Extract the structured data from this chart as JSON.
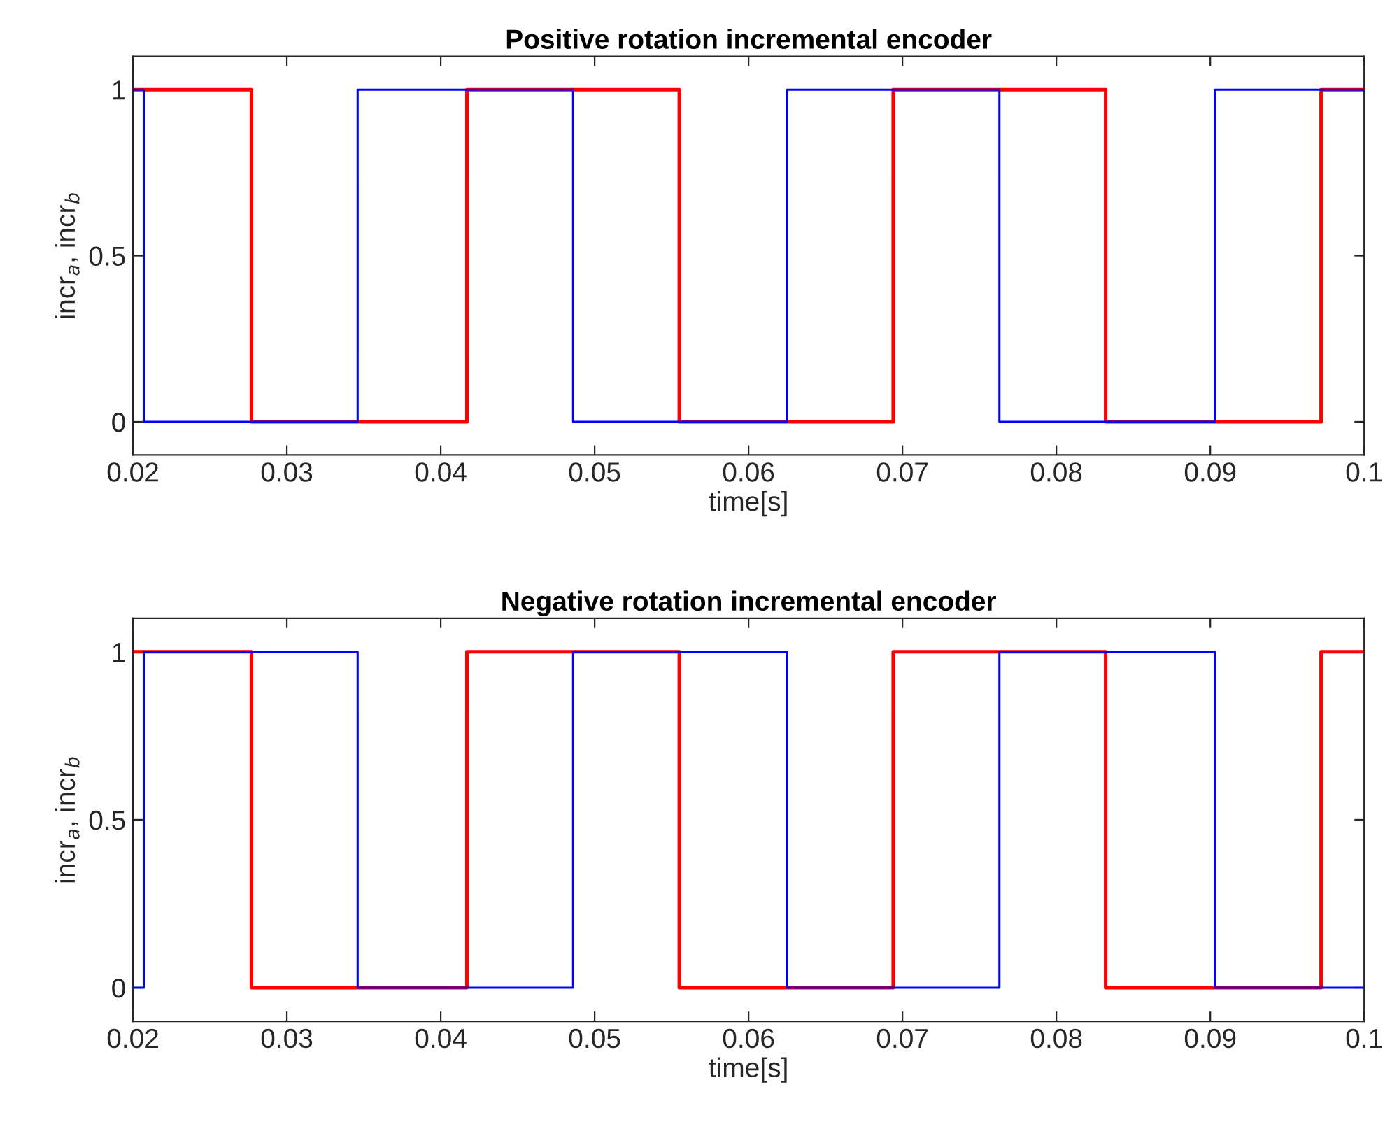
{
  "chart_data": [
    {
      "type": "step",
      "title": "Positive rotation incremental encoder",
      "xlabel": "time[s]",
      "ylabel": "incr$_{a}$, incr$_{b}$",
      "xlim": [
        0.02,
        0.1
      ],
      "ylim": [
        -0.1,
        1.1
      ],
      "xticks": [
        0.02,
        0.03,
        0.04,
        0.05,
        0.06,
        0.07,
        0.08,
        0.09,
        0.1
      ],
      "yticks": [
        0,
        0.5,
        1
      ],
      "grid": false,
      "legend": false,
      "marker": "none",
      "line_style": "solid",
      "series": [
        {
          "color": "#ff0000",
          "x": [
            0.02,
            0.0277,
            0.0417,
            0.0555,
            0.0694,
            0.0832,
            0.0972,
            0.1
          ],
          "values": [
            1,
            0,
            1,
            0,
            1,
            0,
            1,
            1
          ]
        },
        {
          "color": "#0000ff",
          "x": [
            0.02,
            0.0207,
            0.0346,
            0.0486,
            0.0625,
            0.0763,
            0.0903,
            0.1
          ],
          "values": [
            1,
            0,
            1,
            0,
            1,
            0,
            1,
            1
          ]
        }
      ]
    },
    {
      "type": "step",
      "title": "Negative rotation incremental encoder",
      "xlabel": "time[s]",
      "ylabel": "incr$_{a}$, incr$_{b}$",
      "xlim": [
        0.02,
        0.1
      ],
      "ylim": [
        -0.1,
        1.1
      ],
      "xticks": [
        0.02,
        0.03,
        0.04,
        0.05,
        0.06,
        0.07,
        0.08,
        0.09,
        0.1
      ],
      "yticks": [
        0,
        0.5,
        1
      ],
      "grid": false,
      "legend": false,
      "marker": "none",
      "line_style": "solid",
      "series": [
        {
          "color": "#ff0000",
          "x": [
            0.02,
            0.0277,
            0.0417,
            0.0555,
            0.0694,
            0.0832,
            0.0972,
            0.1
          ],
          "values": [
            1,
            0,
            1,
            0,
            1,
            0,
            1,
            1
          ]
        },
        {
          "color": "#0000ff",
          "x": [
            0.02,
            0.0207,
            0.0346,
            0.0486,
            0.0625,
            0.0763,
            0.0903,
            0.1
          ],
          "values": [
            0,
            1,
            0,
            1,
            0,
            1,
            0,
            0
          ]
        }
      ]
    }
  ]
}
